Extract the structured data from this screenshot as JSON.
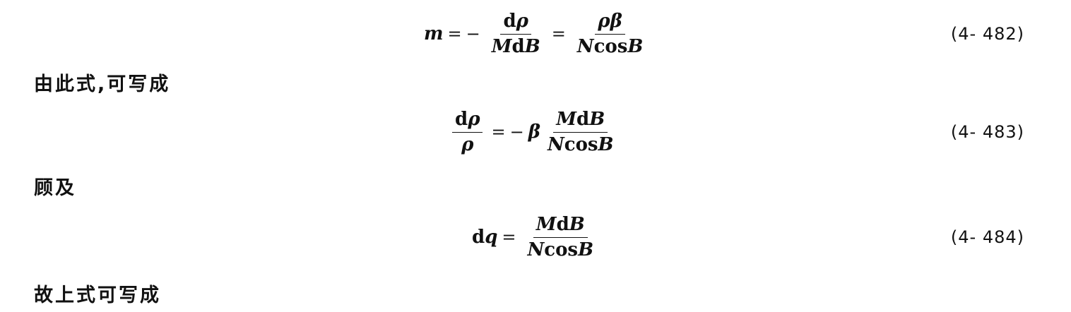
{
  "equations": [
    {
      "number": "(4- 482)",
      "lhs": "m",
      "eq1": "=",
      "minus1": "−",
      "f1_num_d": "d",
      "f1_num_var": "ρ",
      "f1_den_M": "M",
      "f1_den_d": "d",
      "f1_den_B": "B",
      "eq2": "=",
      "f2_num": "ρβ",
      "f2_den_N": "N",
      "f2_den_cos": "cos",
      "f2_den_B": "B"
    },
    {
      "number": "(4- 483)",
      "f1_num_d": "d",
      "f1_num_var": "ρ",
      "f1_den": "ρ",
      "eq1": "=",
      "minus1": "−",
      "coef": "β",
      "f2_num_M": "M",
      "f2_num_d": "d",
      "f2_num_B": "B",
      "f2_den_N": "N",
      "f2_den_cos": "cos",
      "f2_den_B": "B"
    },
    {
      "number": "(4- 484)",
      "lhs_d": "d",
      "lhs_var": "q",
      "eq1": "=",
      "f_num_M": "M",
      "f_num_d": "d",
      "f_num_B": "B",
      "f_den_N": "N",
      "f_den_cos": "cos",
      "f_den_B": "B"
    }
  ],
  "text_lines": [
    "由此式,可写成",
    "顾及",
    "故上式可写成"
  ]
}
